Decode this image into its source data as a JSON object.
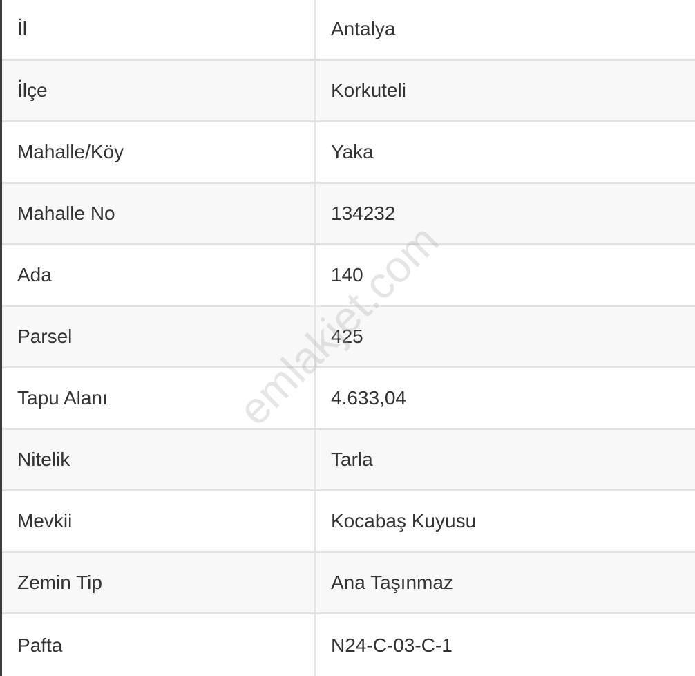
{
  "rows": [
    {
      "label": "İl",
      "value": "Antalya"
    },
    {
      "label": "İlçe",
      "value": "Korkuteli"
    },
    {
      "label": "Mahalle/Köy",
      "value": "Yaka"
    },
    {
      "label": "Mahalle No",
      "value": "134232"
    },
    {
      "label": "Ada",
      "value": "140"
    },
    {
      "label": "Parsel",
      "value": "425"
    },
    {
      "label": "Tapu Alanı",
      "value": "4.633,04"
    },
    {
      "label": "Nitelik",
      "value": "Tarla"
    },
    {
      "label": "Mevkii",
      "value": "Kocabaş Kuyusu"
    },
    {
      "label": "Zemin Tip",
      "value": "Ana Taşınmaz"
    },
    {
      "label": "Pafta",
      "value": "N24-C-03-C-1"
    }
  ],
  "watermark": "emlakjet.com"
}
